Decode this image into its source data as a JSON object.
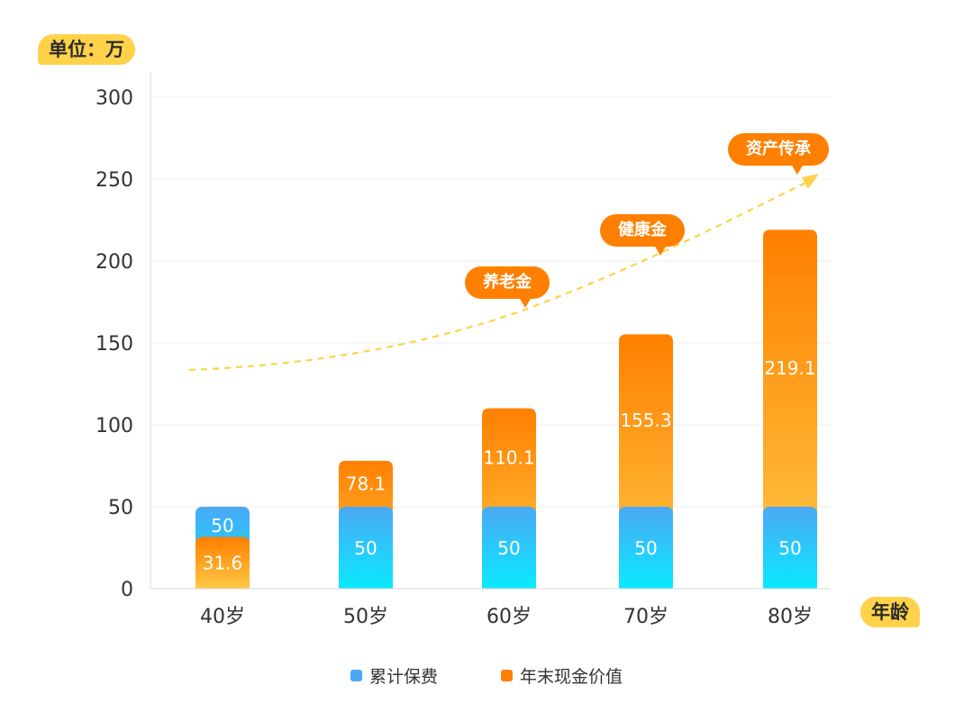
{
  "unit_label": "单位：万",
  "x_axis_label": "年龄",
  "colors": {
    "premium_top": "#4aa8f5",
    "premium_bottom": "#0aeaff",
    "cash_top": "#ff7f00",
    "cash_bottom": "#ffc845",
    "accent_yellow": "#ffd24a",
    "trend_line": "#ffd24a"
  },
  "annotations": [
    {
      "label": "养老金"
    },
    {
      "label": "健康金"
    },
    {
      "label": "资产传承"
    }
  ],
  "legend": [
    {
      "label": "累计保费",
      "color": "#4aa8f5"
    },
    {
      "label": "年末现金价值",
      "color": "#ff7f00"
    }
  ],
  "chart_data": {
    "type": "bar",
    "categories": [
      "40岁",
      "50岁",
      "60岁",
      "70岁",
      "80岁"
    ],
    "y_ticks": [
      "0",
      "50",
      "100",
      "150",
      "200",
      "250",
      "300"
    ],
    "ylim": [
      0,
      300
    ],
    "grid": true,
    "legend_position": "bottom",
    "series": [
      {
        "name": "累计保费",
        "values": [
          50,
          50,
          50,
          50,
          50
        ],
        "labels": [
          "50",
          "50",
          "50",
          "50",
          "50"
        ]
      },
      {
        "name": "年末现金价值",
        "values": [
          31.6,
          78.1,
          110.1,
          155.3,
          219.1
        ],
        "labels": [
          "31.6",
          "78.1",
          "110.1",
          "155.3",
          "219.1"
        ]
      }
    ]
  }
}
